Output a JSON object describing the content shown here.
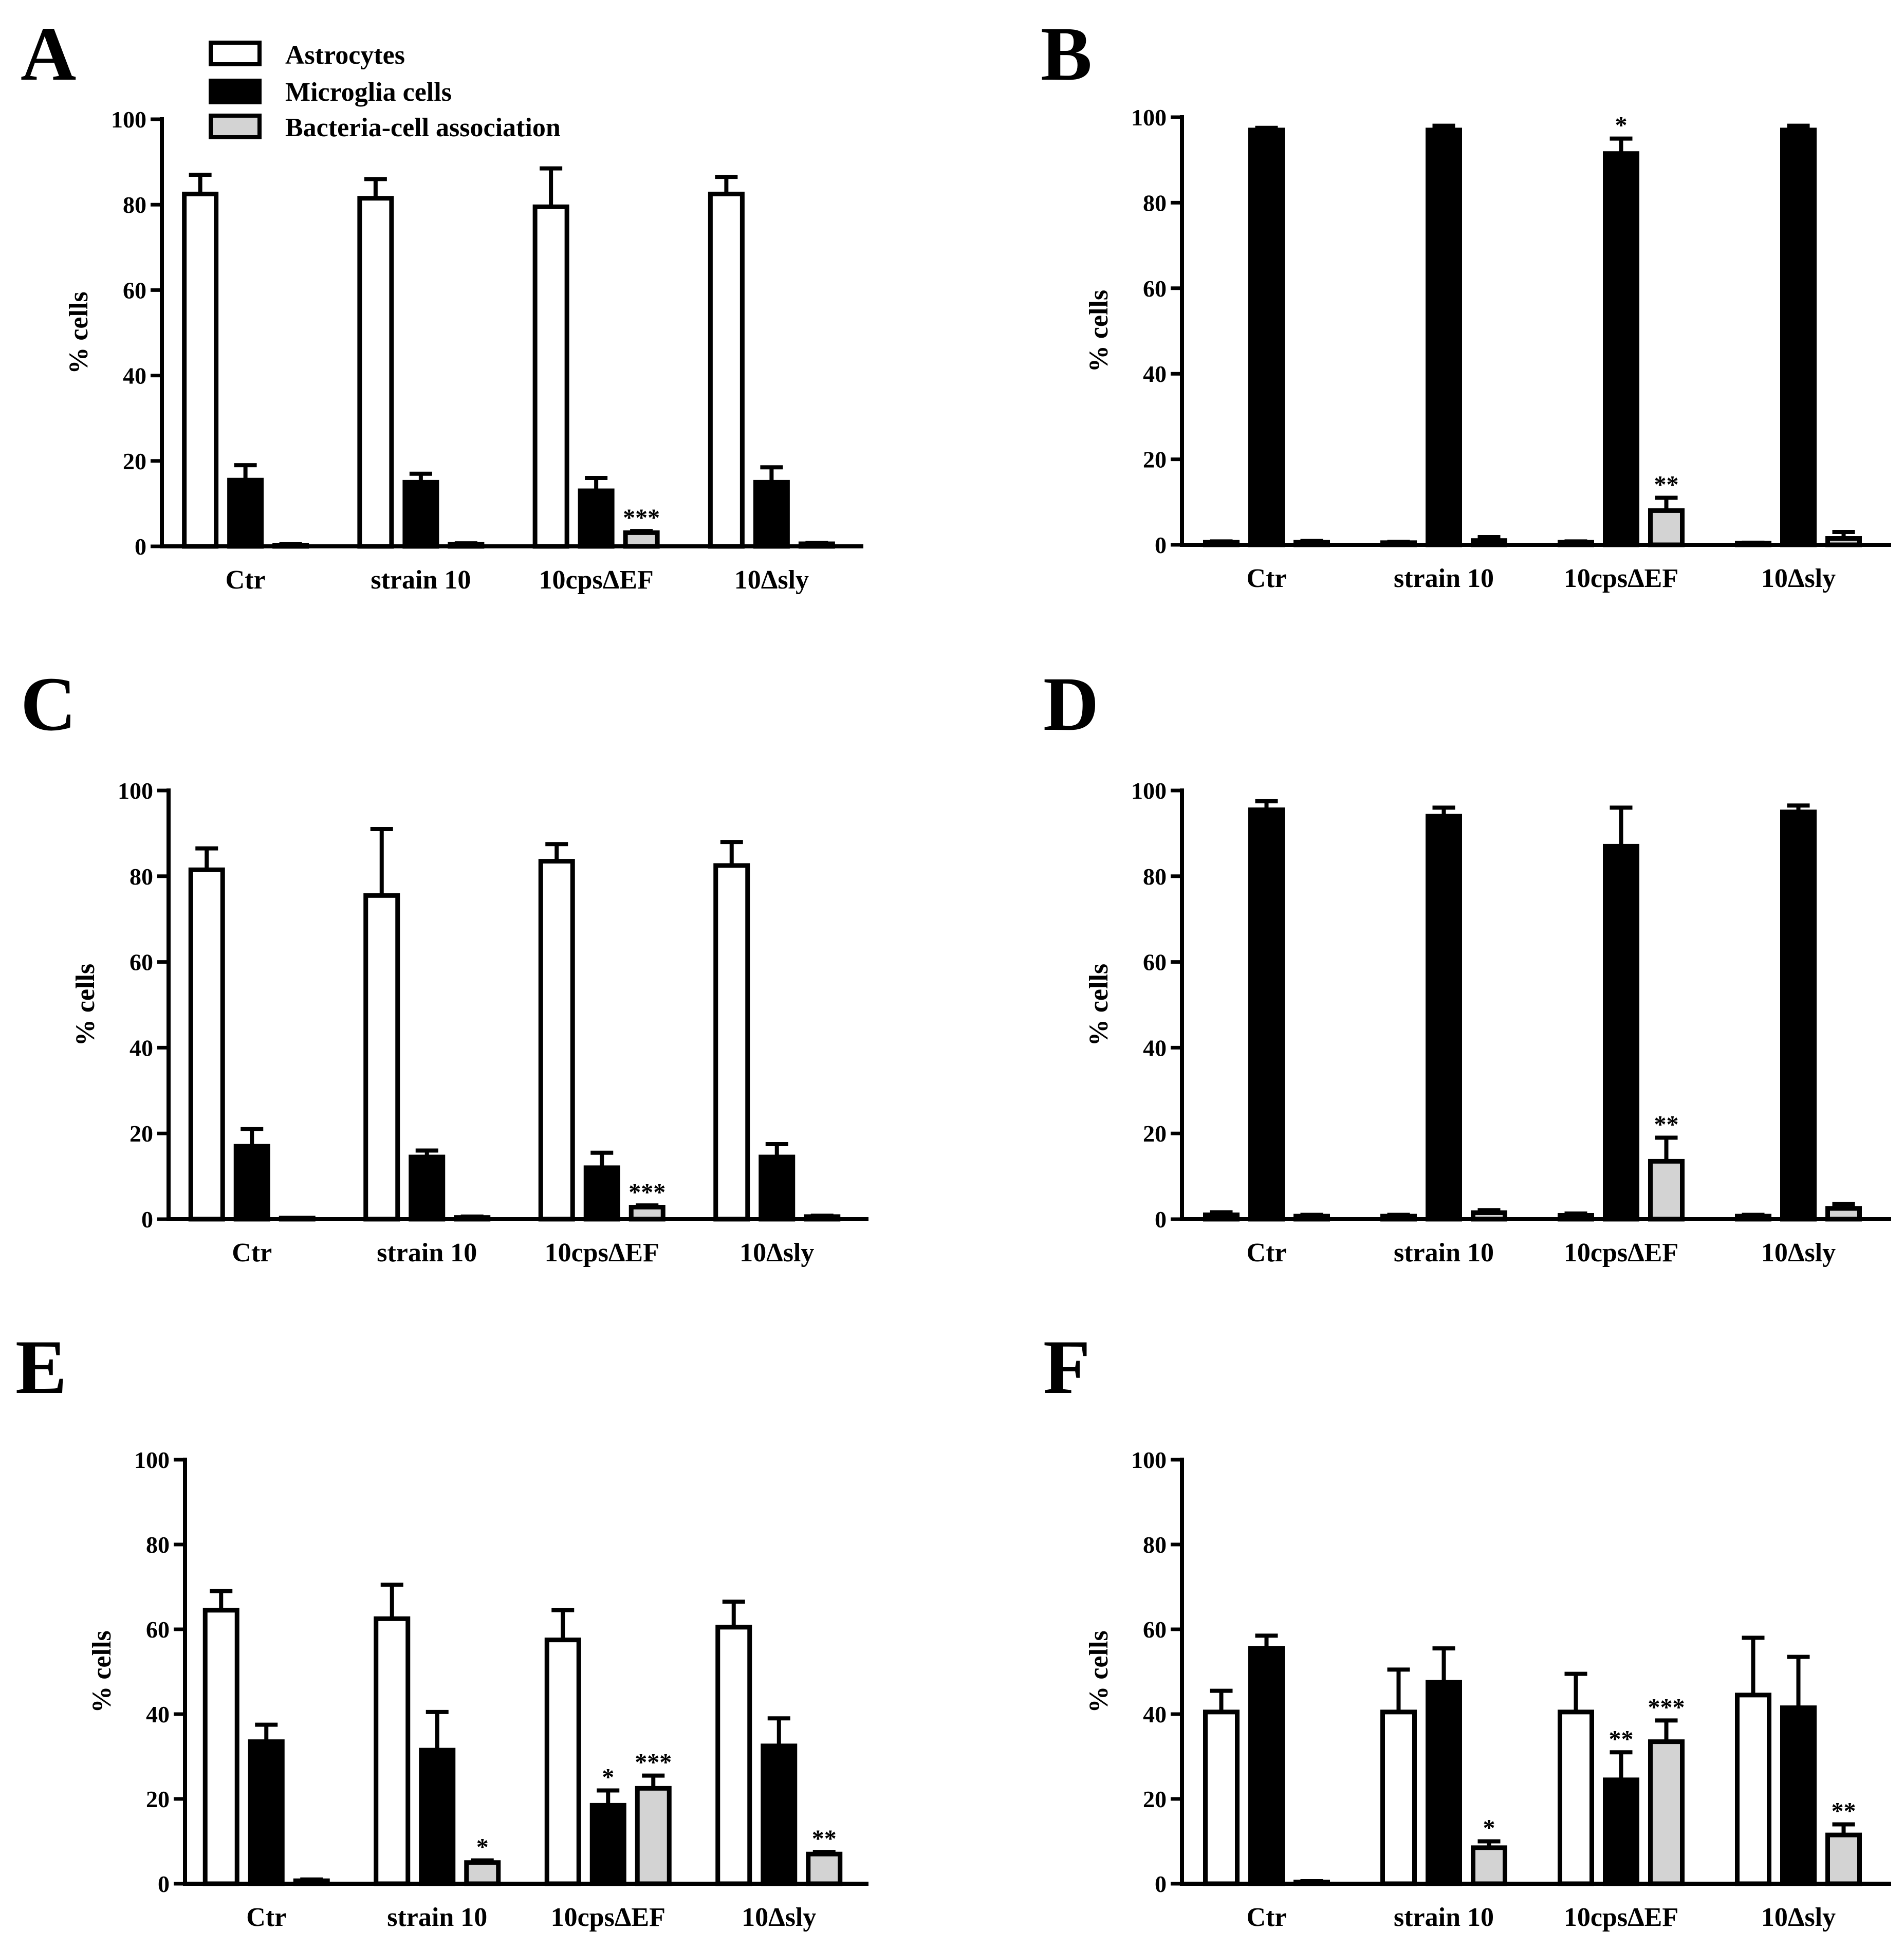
{
  "legend": {
    "items": [
      {
        "label": "Astrocytes",
        "color": "#ffffff"
      },
      {
        "label": "Microglia cells",
        "color": "#000000"
      },
      {
        "label": "Bacteria-cell association",
        "color": "#d3d3d3"
      }
    ]
  },
  "chart_data": [
    {
      "panel": "A",
      "type": "bar",
      "ylabel": "% cells",
      "ylim": [
        0,
        100
      ],
      "yticks": [
        "0",
        "20",
        "40",
        "60",
        "80",
        "100"
      ],
      "categories": [
        "Ctr",
        "strain 10",
        "10cpsΔEF",
        "10Δsly"
      ],
      "series": [
        {
          "name": "Astrocytes",
          "values": [
            82.5,
            81.5,
            79.5,
            82.5
          ],
          "errors": [
            4.5,
            4.5,
            9.0,
            4.0
          ],
          "sig": [
            "",
            "",
            "",
            ""
          ]
        },
        {
          "name": "Microglia cells",
          "values": [
            15.5,
            15.0,
            13.0,
            15.0
          ],
          "errors": [
            3.5,
            2.0,
            3.0,
            3.5
          ],
          "sig": [
            "",
            "",
            "",
            ""
          ]
        },
        {
          "name": "Bacteria-cell association",
          "values": [
            0.3,
            0.5,
            3.2,
            0.6
          ],
          "errors": [
            0.2,
            0.2,
            0.4,
            0.2
          ],
          "sig": [
            "",
            "",
            "***",
            ""
          ]
        }
      ]
    },
    {
      "panel": "B",
      "type": "bar",
      "ylabel": "% cells",
      "ylim": [
        0,
        100
      ],
      "yticks": [
        "0",
        "20",
        "40",
        "60",
        "80",
        "100"
      ],
      "categories": [
        "Ctr",
        "strain 10",
        "10cpsΔEF",
        "10Δsly"
      ],
      "series": [
        {
          "name": "Astrocytes",
          "values": [
            0.6,
            0.5,
            0.6,
            0.4
          ],
          "errors": [
            0.2,
            0.2,
            0.2,
            0.1
          ],
          "sig": [
            "",
            "",
            "",
            ""
          ]
        },
        {
          "name": "Microglia cells",
          "values": [
            97.0,
            97.0,
            91.5,
            97.0
          ],
          "errors": [
            0.5,
            1.0,
            3.5,
            1.0
          ],
          "sig": [
            "",
            "",
            "*",
            ""
          ]
        },
        {
          "name": "Bacteria-cell association",
          "values": [
            0.6,
            1.0,
            8.0,
            1.5
          ],
          "errors": [
            0.3,
            0.8,
            3.0,
            1.5
          ],
          "sig": [
            "",
            "",
            "**",
            ""
          ]
        }
      ]
    },
    {
      "panel": "C",
      "type": "bar",
      "ylabel": "% cells",
      "ylim": [
        0,
        100
      ],
      "yticks": [
        "0",
        "20",
        "40",
        "60",
        "80",
        "100"
      ],
      "categories": [
        "Ctr",
        "strain 10",
        "10cpsΔEF",
        "10Δsly"
      ],
      "series": [
        {
          "name": "Astrocytes",
          "values": [
            81.5,
            75.5,
            83.5,
            82.5
          ],
          "errors": [
            5.0,
            15.5,
            4.0,
            5.5
          ],
          "sig": [
            "",
            "",
            "",
            ""
          ]
        },
        {
          "name": "Microglia cells",
          "values": [
            17.0,
            14.5,
            12.0,
            14.5
          ],
          "errors": [
            4.0,
            1.5,
            3.5,
            3.0
          ],
          "sig": [
            "",
            "",
            "",
            ""
          ]
        },
        {
          "name": "Bacteria-cell association",
          "values": [
            0.2,
            0.4,
            2.8,
            0.6
          ],
          "errors": [
            0.1,
            0.2,
            0.4,
            0.2
          ],
          "sig": [
            "",
            "",
            "***",
            ""
          ]
        }
      ]
    },
    {
      "panel": "D",
      "type": "bar",
      "ylabel": "% cells",
      "ylim": [
        0,
        100
      ],
      "yticks": [
        "0",
        "20",
        "40",
        "60",
        "80",
        "100"
      ],
      "categories": [
        "Ctr",
        "strain 10",
        "10cpsΔEF",
        "10Δsly"
      ],
      "series": [
        {
          "name": "Astrocytes",
          "values": [
            1.0,
            0.7,
            0.9,
            0.7
          ],
          "errors": [
            0.6,
            0.3,
            0.4,
            0.3
          ],
          "sig": [
            "",
            "",
            "",
            ""
          ]
        },
        {
          "name": "Microglia cells",
          "values": [
            95.5,
            94.0,
            87.0,
            95.0
          ],
          "errors": [
            2.0,
            2.0,
            9.0,
            1.5
          ],
          "sig": [
            "",
            "",
            "",
            ""
          ]
        },
        {
          "name": "Bacteria-cell association",
          "values": [
            0.7,
            1.5,
            13.5,
            2.5
          ],
          "errors": [
            0.3,
            0.6,
            5.5,
            1.0
          ],
          "sig": [
            "",
            "",
            "**",
            ""
          ]
        }
      ]
    },
    {
      "panel": "E",
      "type": "bar",
      "ylabel": "% cells",
      "ylim": [
        0,
        100
      ],
      "yticks": [
        "0",
        "20",
        "40",
        "60",
        "80",
        "100"
      ],
      "categories": [
        "Ctr",
        "strain 10",
        "10cpsΔEF",
        "10Δsly"
      ],
      "series": [
        {
          "name": "Astrocytes",
          "values": [
            64.5,
            62.5,
            57.5,
            60.5
          ],
          "errors": [
            4.5,
            8.0,
            7.0,
            6.0
          ],
          "sig": [
            "",
            "",
            "",
            ""
          ]
        },
        {
          "name": "Microglia cells",
          "values": [
            33.5,
            31.5,
            18.5,
            32.5
          ],
          "errors": [
            4.0,
            9.0,
            3.5,
            6.5
          ],
          "sig": [
            "",
            "",
            "*",
            ""
          ]
        },
        {
          "name": "Bacteria-cell association",
          "values": [
            0.7,
            5.0,
            22.5,
            7.0
          ],
          "errors": [
            0.3,
            0.5,
            3.0,
            0.5
          ],
          "sig": [
            "",
            "*",
            "***",
            "**"
          ]
        }
      ]
    },
    {
      "panel": "F",
      "type": "bar",
      "ylabel": "% cells",
      "ylim": [
        0,
        100
      ],
      "yticks": [
        "0",
        "20",
        "40",
        "60",
        "80",
        "100"
      ],
      "categories": [
        "Ctr",
        "strain 10",
        "10cpsΔEF",
        "10Δsly"
      ],
      "series": [
        {
          "name": "Astrocytes",
          "values": [
            40.5,
            40.5,
            40.5,
            44.5
          ],
          "errors": [
            5.0,
            10.0,
            9.0,
            13.5
          ],
          "sig": [
            "",
            "",
            "",
            ""
          ]
        },
        {
          "name": "Microglia cells",
          "values": [
            55.5,
            47.5,
            24.5,
            41.5
          ],
          "errors": [
            3.0,
            8.0,
            6.5,
            12.0
          ],
          "sig": [
            "",
            "",
            "**",
            ""
          ]
        },
        {
          "name": "Bacteria-cell association",
          "values": [
            0.4,
            8.5,
            33.5,
            11.5
          ],
          "errors": [
            0.2,
            1.5,
            5.0,
            2.5
          ],
          "sig": [
            "",
            "*",
            "***",
            "**"
          ]
        }
      ]
    }
  ]
}
